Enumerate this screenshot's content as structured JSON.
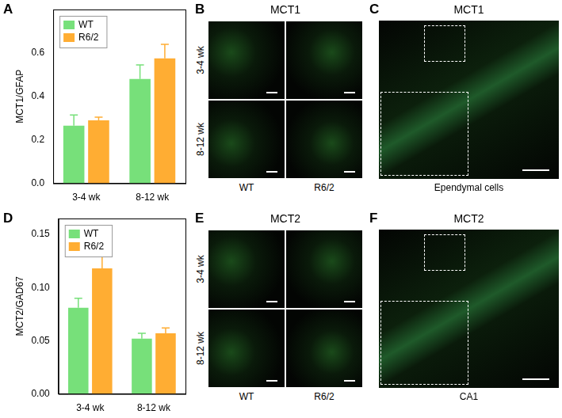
{
  "chart_data": [
    {
      "type": "bar",
      "annotations": [
        "A"
      ],
      "ylabel": "MCT1/GFAP",
      "categories": [
        "3-4 wk",
        "8-12 wk"
      ],
      "series": [
        {
          "name": "WT",
          "color": "#77e07a",
          "values": [
            0.265,
            0.48
          ],
          "errors": [
            0.05,
            0.065
          ]
        },
        {
          "name": "R6/2",
          "color": "#ffad33",
          "values": [
            0.29,
            0.575
          ],
          "errors": [
            0.015,
            0.065
          ]
        }
      ],
      "ylim": [
        0,
        0.8
      ],
      "yticks": [
        {
          "value": 0,
          "label": "0.0"
        },
        0.2,
        0.4,
        0.6
      ],
      "grid": false,
      "legend": "upper left"
    },
    {
      "type": "bar",
      "annotations": [
        "D"
      ],
      "ylabel": "MCT2/GAD67",
      "categories": [
        "3-4 wk",
        "8-12 wk"
      ],
      "series": [
        {
          "name": "WT",
          "color": "#77e07a",
          "values": [
            0.081,
            0.052
          ],
          "errors": [
            0.009,
            0.005
          ]
        },
        {
          "name": "R6/2",
          "color": "#ffad33",
          "values": [
            0.118,
            0.057
          ],
          "errors": [
            0.018,
            0.005
          ]
        }
      ],
      "ylim": [
        0,
        0.165
      ],
      "yticks": [
        {
          "value": 0,
          "label": "0.00"
        },
        {
          "value": 0.05,
          "label": "0.05"
        },
        {
          "value": 0.1,
          "label": "0.10"
        },
        {
          "value": 0.15,
          "label": "0.15"
        }
      ],
      "grid": false,
      "legend": "upper left"
    }
  ],
  "image_panels": [
    {
      "letter": "B",
      "title": "MCT1",
      "rows": [
        "3-4 wk",
        "8-12 wk"
      ],
      "columns": [
        "WT",
        "R6/2"
      ]
    },
    {
      "letter": "C",
      "title": "MCT1",
      "caption": "Ependymal cells"
    },
    {
      "letter": "E",
      "title": "MCT2",
      "rows": [
        "3-4 wk",
        "8-12 wk"
      ],
      "columns": [
        "WT",
        "R6/2"
      ]
    },
    {
      "letter": "F",
      "title": "MCT2",
      "caption": "CA1"
    }
  ]
}
